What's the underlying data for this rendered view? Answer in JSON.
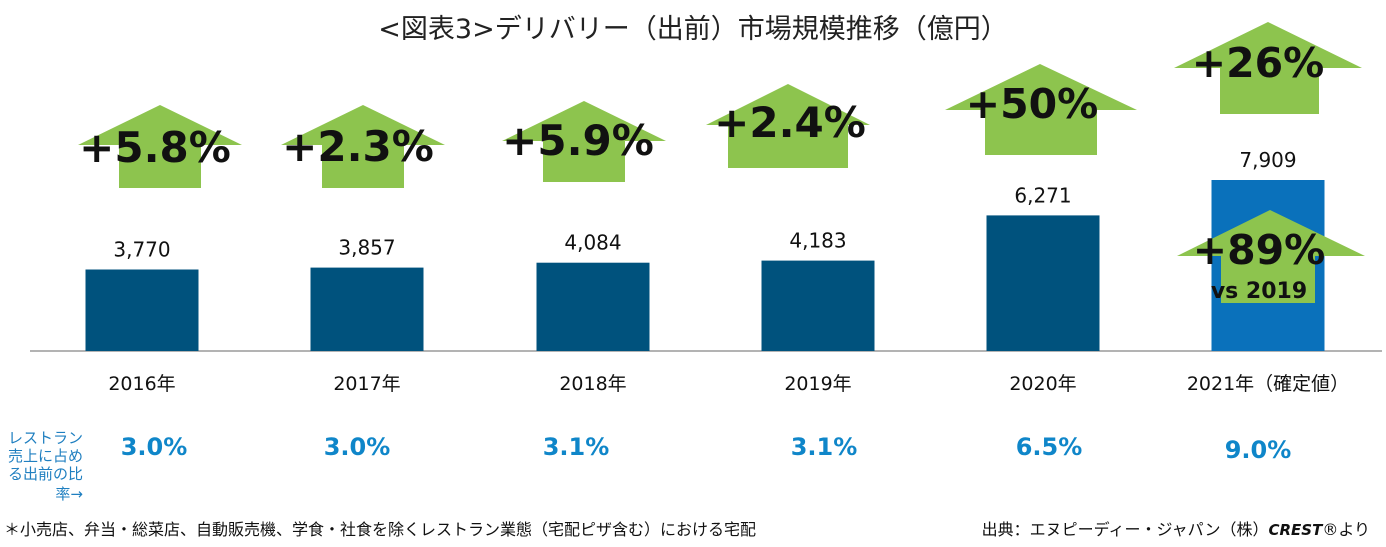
{
  "chart_data": {
    "type": "bar",
    "title": "<図表3>デリバリー（出前）市場規模推移（億円）",
    "categories": [
      "2016年",
      "2017年",
      "2018年",
      "2019年",
      "2020年",
      "2021年（確定値）"
    ],
    "values": [
      3770,
      3857,
      4084,
      4183,
      6271,
      7909
    ],
    "value_labels": [
      "3,770",
      "3,857",
      "4,084",
      "4,183",
      "6,271",
      "7,909"
    ],
    "ylim": [
      0,
      9000
    ],
    "colors": {
      "bar": "#00527d",
      "highlight_bar": "#0a71bb",
      "arrow": "#8dc44e",
      "ratio_text": "#0f86c9"
    },
    "growth_rates": [
      "+5.8%",
      "+2.3%",
      "+5.9%",
      "+2.4%",
      "+50%",
      "+26%"
    ],
    "extra_growth": {
      "value": "+89%",
      "note": "vs 2019"
    },
    "restaurant_share": {
      "label_lines": [
        "レストラン",
        "売上に占め",
        "る出前の比",
        "率→"
      ],
      "values": [
        "3.0%",
        "3.0%",
        "3.1%",
        "3.1%",
        "6.5%",
        "9.0%"
      ]
    },
    "footnote": "＊小売店、弁当・総菜店、自動販売機、学食・社食を除くレストラン業態（宅配ピザ含む）における宅配",
    "source": "出典：エヌピーディー・ジャパン（株）",
    "source_brand": "CREST",
    "source_suffix": "®より"
  }
}
